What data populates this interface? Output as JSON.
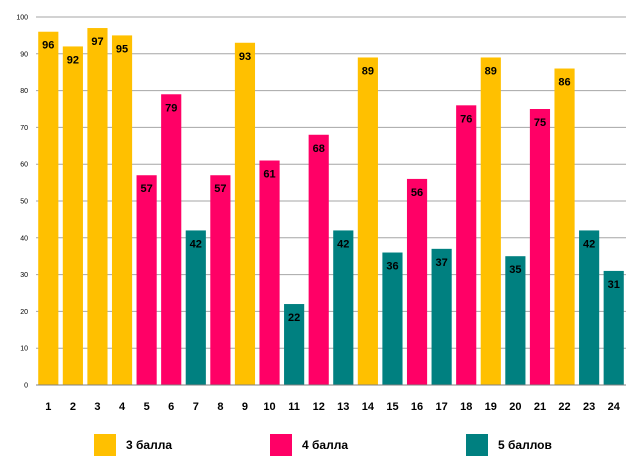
{
  "chart_data": {
    "type": "bar",
    "categories": [
      "1",
      "2",
      "3",
      "4",
      "5",
      "6",
      "7",
      "8",
      "9",
      "10",
      "11",
      "12",
      "13",
      "14",
      "15",
      "16",
      "17",
      "18",
      "19",
      "20",
      "21",
      "22",
      "23",
      "24"
    ],
    "values": [
      96,
      92,
      97,
      95,
      57,
      79,
      42,
      57,
      93,
      61,
      22,
      68,
      42,
      89,
      36,
      56,
      37,
      76,
      89,
      35,
      75,
      86,
      42,
      31
    ],
    "groups": [
      0,
      0,
      0,
      0,
      1,
      1,
      2,
      1,
      0,
      1,
      2,
      1,
      2,
      0,
      2,
      1,
      2,
      1,
      0,
      2,
      1,
      0,
      2,
      2
    ],
    "series": [
      {
        "name": "3 балла",
        "color": "#ffc000"
      },
      {
        "name": "4 балла",
        "color": "#ff0066"
      },
      {
        "name": "5 баллов",
        "color": "#008080"
      }
    ],
    "y_ticks": [
      "0",
      "10",
      "20",
      "30",
      "40",
      "50",
      "60",
      "70",
      "80",
      "90",
      "100"
    ],
    "ylim": [
      0,
      100
    ],
    "grid": true,
    "title": "",
    "xlabel": "",
    "ylabel": ""
  }
}
